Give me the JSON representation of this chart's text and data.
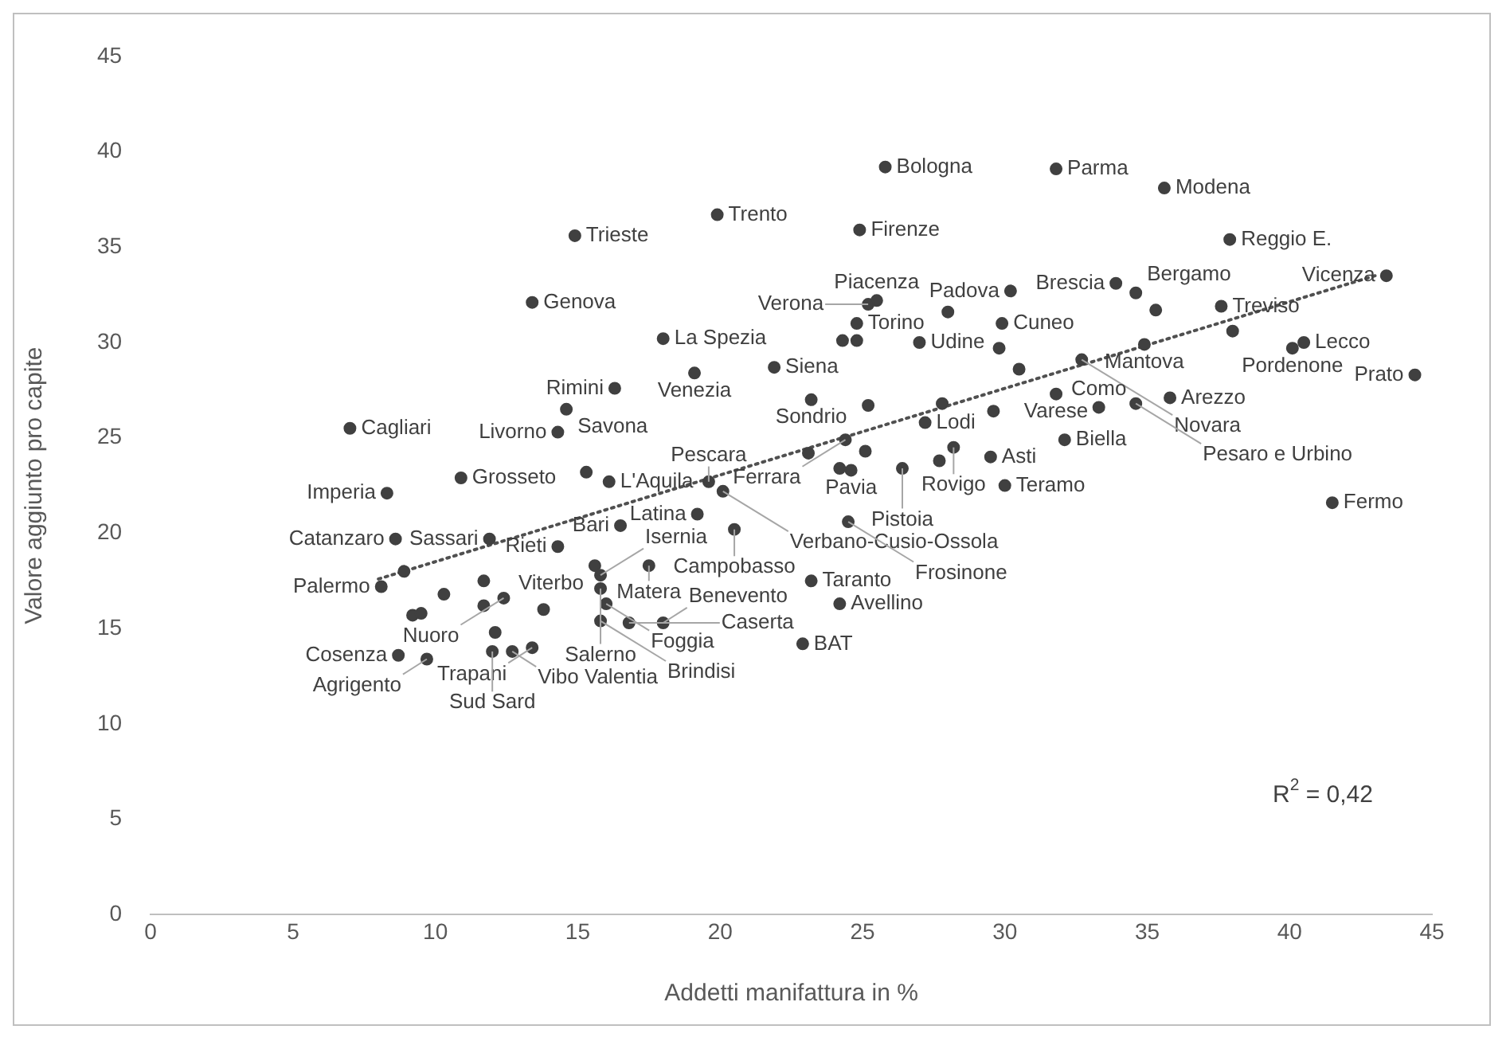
{
  "chart_data": {
    "type": "scatter",
    "xlabel": "Addetti manifattura in %",
    "ylabel": "Valore aggiunto pro capite",
    "xlim": [
      0,
      45
    ],
    "xticks": [
      0,
      5,
      10,
      15,
      20,
      25,
      30,
      35,
      40,
      45
    ],
    "ylim": [
      0,
      45
    ],
    "yticks": [
      0,
      5,
      10,
      15,
      20,
      25,
      30,
      35,
      40,
      45
    ],
    "grid": false,
    "legend": false,
    "marker": "circle",
    "series": [
      {
        "type": "scatter",
        "color": "#404040",
        "x": [
          25.8,
          31.8,
          35.6,
          19.9,
          24.9,
          14.9,
          37.9,
          33.9,
          43.4,
          30.2,
          34.6,
          13.4,
          25.5,
          25.2,
          24.8,
          37.6,
          29.9,
          27.0,
          18.0,
          34.9,
          40.5,
          40.1,
          21.9,
          19.1,
          32.7,
          44.4,
          16.3,
          23.2,
          31.8,
          35.8,
          33.3,
          34.6,
          14.6,
          7.0,
          14.3,
          27.2,
          32.1,
          24.4,
          28.2,
          29.5,
          24.6,
          26.4,
          10.9,
          16.1,
          19.6,
          30.0,
          20.1,
          8.3,
          41.5,
          19.2,
          24.5,
          16.5,
          20.5,
          8.6,
          11.9,
          14.3,
          15.6,
          17.5,
          15.8,
          23.2,
          8.1,
          15.8,
          12.4,
          24.2,
          16.0,
          15.8,
          16.8,
          18.0,
          22.9,
          13.4,
          12.7,
          12.0,
          8.7,
          9.7,
          24.3,
          24.8,
          29.8,
          30.5,
          25.2,
          27.8,
          29.6,
          23.1,
          25.1,
          27.7,
          28.0,
          35.3,
          38.0,
          15.3,
          8.9,
          10.3,
          11.7,
          11.7,
          9.2,
          9.5,
          13.8,
          12.1,
          24.2
        ],
        "values": [
          39.2,
          39.1,
          38.1,
          36.7,
          35.9,
          35.6,
          35.4,
          33.1,
          33.5,
          32.7,
          32.6,
          32.1,
          32.2,
          32.0,
          31.0,
          31.9,
          31.0,
          30.0,
          30.2,
          29.9,
          30.0,
          29.7,
          28.7,
          28.4,
          29.1,
          28.3,
          27.6,
          27.0,
          27.3,
          27.1,
          26.6,
          26.8,
          26.5,
          25.5,
          25.3,
          25.8,
          24.9,
          24.9,
          24.5,
          24.0,
          23.3,
          23.4,
          22.9,
          22.7,
          22.7,
          22.5,
          22.2,
          22.1,
          21.6,
          21.0,
          20.6,
          20.4,
          20.2,
          19.7,
          19.7,
          19.3,
          18.3,
          18.3,
          17.8,
          17.5,
          17.2,
          17.1,
          16.6,
          16.3,
          16.3,
          15.4,
          15.3,
          15.3,
          14.2,
          14.0,
          13.8,
          13.8,
          13.6,
          13.4,
          30.1,
          30.1,
          29.7,
          28.6,
          26.7,
          26.8,
          26.4,
          24.2,
          24.3,
          23.8,
          31.6,
          31.7,
          30.6,
          23.2,
          18.0,
          16.8,
          17.5,
          16.2,
          15.7,
          15.8,
          16.0,
          14.8,
          23.4
        ]
      },
      {
        "type": "line",
        "color": "#505050",
        "line_style": "dotted",
        "marker": "none",
        "x": [
          8,
          43
        ],
        "values": [
          17.6,
          33.5
        ]
      }
    ],
    "annotations": [
      {
        "text": "Bologna",
        "x": 25.8,
        "y": 39.2
      },
      {
        "text": "Parma",
        "x": 31.8,
        "y": 39.1
      },
      {
        "text": "Modena",
        "x": 35.6,
        "y": 38.1
      },
      {
        "text": "Trento",
        "x": 19.9,
        "y": 36.7
      },
      {
        "text": "Firenze",
        "x": 24.9,
        "y": 35.9
      },
      {
        "text": "Trieste",
        "x": 14.9,
        "y": 35.6
      },
      {
        "text": "Reggio E.",
        "x": 37.9,
        "y": 35.4
      },
      {
        "text": "Brescia",
        "x": 33.9,
        "y": 33.1
      },
      {
        "text": "Vicenza",
        "x": 43.4,
        "y": 33.5
      },
      {
        "text": "Padova",
        "x": 30.2,
        "y": 32.7
      },
      {
        "text": "Bergamo",
        "x": 34.6,
        "y": 32.6
      },
      {
        "text": "Genova",
        "x": 13.4,
        "y": 32.1
      },
      {
        "text": "Piacenza",
        "x": 25.5,
        "y": 32.2
      },
      {
        "text": "Verona",
        "x": 25.2,
        "y": 32.0
      },
      {
        "text": "Torino",
        "x": 24.8,
        "y": 31.0
      },
      {
        "text": "Treviso",
        "x": 37.6,
        "y": 31.9
      },
      {
        "text": "Cuneo",
        "x": 29.9,
        "y": 31.0
      },
      {
        "text": "Udine",
        "x": 27.0,
        "y": 30.0
      },
      {
        "text": "La Spezia",
        "x": 18.0,
        "y": 30.2
      },
      {
        "text": "Mantova",
        "x": 34.9,
        "y": 29.9
      },
      {
        "text": "Lecco",
        "x": 40.5,
        "y": 30.0
      },
      {
        "text": "Pordenone",
        "x": 40.1,
        "y": 29.7
      },
      {
        "text": "Siena",
        "x": 21.9,
        "y": 28.7
      },
      {
        "text": "Venezia",
        "x": 19.1,
        "y": 28.4
      },
      {
        "text": "Novara",
        "x": 32.7,
        "y": 29.1
      },
      {
        "text": "Prato",
        "x": 44.4,
        "y": 28.3
      },
      {
        "text": "Rimini",
        "x": 16.3,
        "y": 27.6
      },
      {
        "text": "Sondrio",
        "x": 23.2,
        "y": 27.0
      },
      {
        "text": "Varese",
        "x": 31.8,
        "y": 27.3
      },
      {
        "text": "Arezzo",
        "x": 35.8,
        "y": 27.1
      },
      {
        "text": "Como",
        "x": 33.3,
        "y": 26.6
      },
      {
        "text": "Pesaro e Urbino",
        "x": 34.6,
        "y": 26.8
      },
      {
        "text": "Savona",
        "x": 14.6,
        "y": 26.5
      },
      {
        "text": "Cagliari",
        "x": 7.0,
        "y": 25.5
      },
      {
        "text": "Livorno",
        "x": 14.3,
        "y": 25.3
      },
      {
        "text": "Lodi",
        "x": 27.2,
        "y": 25.8
      },
      {
        "text": "Biella",
        "x": 32.1,
        "y": 24.9
      },
      {
        "text": "Ferrara",
        "x": 24.4,
        "y": 24.9
      },
      {
        "text": "Rovigo",
        "x": 28.2,
        "y": 24.5
      },
      {
        "text": "Asti",
        "x": 29.5,
        "y": 24.0
      },
      {
        "text": "Pavia",
        "x": 24.6,
        "y": 23.3
      },
      {
        "text": "Pistoia",
        "x": 26.4,
        "y": 23.4
      },
      {
        "text": "Grosseto",
        "x": 10.9,
        "y": 22.9
      },
      {
        "text": "L'Aquila",
        "x": 16.1,
        "y": 22.7
      },
      {
        "text": "Pescara",
        "x": 19.6,
        "y": 22.7
      },
      {
        "text": "Teramo",
        "x": 30.0,
        "y": 22.5
      },
      {
        "text": "Verbano-Cusio-Ossola",
        "x": 20.1,
        "y": 22.2
      },
      {
        "text": "Imperia",
        "x": 8.3,
        "y": 22.1
      },
      {
        "text": "Fermo",
        "x": 41.5,
        "y": 21.6
      },
      {
        "text": "Latina",
        "x": 19.2,
        "y": 21.0
      },
      {
        "text": "Frosinone",
        "x": 24.5,
        "y": 20.6
      },
      {
        "text": "Bari",
        "x": 16.5,
        "y": 20.4
      },
      {
        "text": "Campobasso",
        "x": 20.5,
        "y": 20.2
      },
      {
        "text": "Catanzaro",
        "x": 8.6,
        "y": 19.7
      },
      {
        "text": "Sassari",
        "x": 11.9,
        "y": 19.7
      },
      {
        "text": "Rieti",
        "x": 14.3,
        "y": 19.3
      },
      {
        "text": "Viterbo",
        "x": 15.6,
        "y": 18.3
      },
      {
        "text": "Matera",
        "x": 17.5,
        "y": 18.3
      },
      {
        "text": "Isernia",
        "x": 15.8,
        "y": 17.8
      },
      {
        "text": "Taranto",
        "x": 23.2,
        "y": 17.5
      },
      {
        "text": "Palermo",
        "x": 8.1,
        "y": 17.2
      },
      {
        "text": "Salerno",
        "x": 15.8,
        "y": 17.1
      },
      {
        "text": "Nuoro",
        "x": 12.4,
        "y": 16.6
      },
      {
        "text": "Avellino",
        "x": 24.2,
        "y": 16.3
      },
      {
        "text": "Foggia",
        "x": 16.0,
        "y": 16.3
      },
      {
        "text": "Brindisi",
        "x": 15.8,
        "y": 15.4
      },
      {
        "text": "Caserta",
        "x": 16.8,
        "y": 15.3
      },
      {
        "text": "Benevento",
        "x": 18.0,
        "y": 15.3
      },
      {
        "text": "BAT",
        "x": 22.9,
        "y": 14.2
      },
      {
        "text": "Trapani",
        "x": 13.4,
        "y": 14.0
      },
      {
        "text": "Vibo Valentia",
        "x": 12.7,
        "y": 13.8
      },
      {
        "text": "Sud Sard",
        "x": 12.0,
        "y": 13.8
      },
      {
        "text": "Cosenza",
        "x": 8.7,
        "y": 13.6
      },
      {
        "text": "Agrigento",
        "x": 9.7,
        "y": 13.4
      },
      "R$^{2}$ = 0,42"
    ]
  }
}
